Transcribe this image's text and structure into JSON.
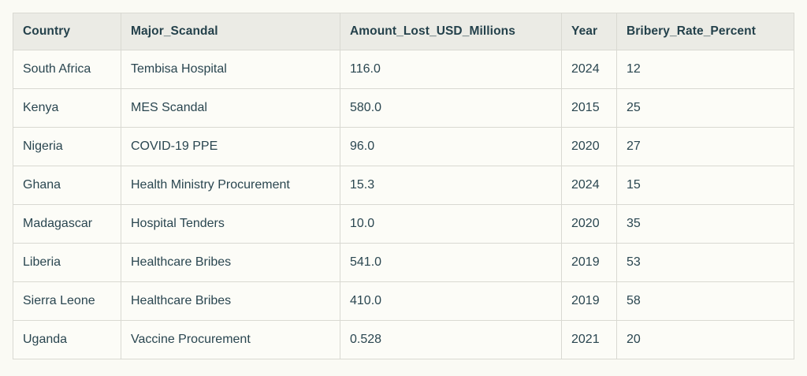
{
  "page_background": "#fafaf4",
  "accent_text_color": "#25424c",
  "header_background": "#ebebe5",
  "border_color": "#d9d9d2",
  "table": {
    "columns": [
      "Country",
      "Major_Scandal",
      "Amount_Lost_USD_Millions",
      "Year",
      "Bribery_Rate_Percent"
    ],
    "rows": [
      [
        "South Africa",
        "Tembisa Hospital",
        "116.0",
        "2024",
        "12"
      ],
      [
        "Kenya",
        "MES Scandal",
        "580.0",
        "2015",
        "25"
      ],
      [
        "Nigeria",
        "COVID-19 PPE",
        "96.0",
        "2020",
        "27"
      ],
      [
        "Ghana",
        "Health Ministry Procurement",
        "15.3",
        "2024",
        "15"
      ],
      [
        "Madagascar",
        "Hospital Tenders",
        "10.0",
        "2020",
        "35"
      ],
      [
        "Liberia",
        "Healthcare Bribes",
        "541.0",
        "2019",
        "53"
      ],
      [
        "Sierra Leone",
        "Healthcare Bribes",
        "410.0",
        "2019",
        "58"
      ],
      [
        "Uganda",
        "Vaccine Procurement",
        "0.528",
        "2021",
        "20"
      ]
    ]
  },
  "chart_data": {
    "type": "table",
    "title": "",
    "columns": [
      "Country",
      "Major_Scandal",
      "Amount_Lost_USD_Millions",
      "Year",
      "Bribery_Rate_Percent"
    ],
    "rows": [
      {
        "Country": "South Africa",
        "Major_Scandal": "Tembisa Hospital",
        "Amount_Lost_USD_Millions": 116.0,
        "Year": 2024,
        "Bribery_Rate_Percent": 12
      },
      {
        "Country": "Kenya",
        "Major_Scandal": "MES Scandal",
        "Amount_Lost_USD_Millions": 580.0,
        "Year": 2015,
        "Bribery_Rate_Percent": 25
      },
      {
        "Country": "Nigeria",
        "Major_Scandal": "COVID-19 PPE",
        "Amount_Lost_USD_Millions": 96.0,
        "Year": 2020,
        "Bribery_Rate_Percent": 27
      },
      {
        "Country": "Ghana",
        "Major_Scandal": "Health Ministry Procurement",
        "Amount_Lost_USD_Millions": 15.3,
        "Year": 2024,
        "Bribery_Rate_Percent": 15
      },
      {
        "Country": "Madagascar",
        "Major_Scandal": "Hospital Tenders",
        "Amount_Lost_USD_Millions": 10.0,
        "Year": 2020,
        "Bribery_Rate_Percent": 35
      },
      {
        "Country": "Liberia",
        "Major_Scandal": "Healthcare Bribes",
        "Amount_Lost_USD_Millions": 541.0,
        "Year": 2019,
        "Bribery_Rate_Percent": 53
      },
      {
        "Country": "Sierra Leone",
        "Major_Scandal": "Healthcare Bribes",
        "Amount_Lost_USD_Millions": 410.0,
        "Year": 2019,
        "Bribery_Rate_Percent": 58
      },
      {
        "Country": "Uganda",
        "Major_Scandal": "Vaccine Procurement",
        "Amount_Lost_USD_Millions": 0.528,
        "Year": 2021,
        "Bribery_Rate_Percent": 20
      }
    ]
  }
}
